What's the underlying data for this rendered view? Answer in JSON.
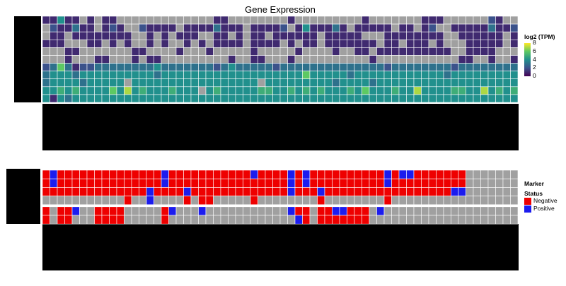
{
  "chart_data": [
    {
      "type": "heatmap",
      "title": "Gene Expression",
      "n_columns": 64,
      "n_rows": 11,
      "colorbar": {
        "title": "log2 (TPM)",
        "ticks": [
          0,
          2,
          4,
          6,
          8
        ],
        "range": [
          0,
          8
        ],
        "colormap": "viridis",
        "missing_color": "#a0a0a0"
      },
      "note": "matrix values are log2(TPM); null = missing (grey)",
      "matrix": [
        [
          1,
          1,
          4,
          1,
          1,
          null,
          1,
          null,
          1,
          1,
          null,
          null,
          null,
          null,
          null,
          null,
          null,
          null,
          null,
          null,
          null,
          null,
          null,
          1,
          1,
          null,
          null,
          null,
          null,
          null,
          null,
          null,
          null,
          1,
          null,
          null,
          null,
          null,
          null,
          null,
          null,
          null,
          null,
          1,
          null,
          null,
          null,
          null,
          null,
          null,
          null,
          1,
          1,
          1,
          null,
          null,
          null,
          null,
          null,
          null,
          2,
          1,
          null,
          null
        ],
        [
          null,
          2,
          1,
          1,
          3,
          1,
          1,
          null,
          1,
          2,
          1,
          null,
          null,
          2,
          1,
          1,
          1,
          1,
          null,
          1,
          1,
          1,
          1,
          3,
          1,
          1,
          1,
          null,
          1,
          1,
          1,
          1,
          2,
          null,
          1,
          4,
          1,
          1,
          1,
          3,
          1,
          null,
          1,
          1,
          1,
          1,
          1,
          null,
          1,
          1,
          null,
          1,
          2,
          null,
          null,
          1,
          1,
          1,
          1,
          1,
          3,
          1,
          1,
          2
        ],
        [
          null,
          1,
          1,
          null,
          1,
          1,
          1,
          1,
          1,
          1,
          1,
          1,
          null,
          null,
          1,
          null,
          1,
          null,
          1,
          1,
          1,
          null,
          null,
          1,
          1,
          null,
          1,
          null,
          1,
          1,
          null,
          1,
          1,
          1,
          1,
          1,
          1,
          null,
          1,
          1,
          1,
          1,
          1,
          null,
          null,
          null,
          1,
          1,
          1,
          1,
          1,
          1,
          1,
          1,
          null,
          null,
          1,
          1,
          1,
          1,
          1,
          1,
          null,
          1
        ],
        [
          1,
          1,
          1,
          null,
          null,
          null,
          1,
          1,
          null,
          1,
          null,
          1,
          null,
          null,
          1,
          null,
          1,
          null,
          null,
          1,
          null,
          1,
          null,
          1,
          1,
          1,
          1,
          null,
          1,
          1,
          1,
          1,
          null,
          1,
          null,
          1,
          1,
          null,
          1,
          1,
          1,
          1,
          1,
          1,
          1,
          null,
          1,
          1,
          null,
          1,
          1,
          1,
          null,
          1,
          null,
          null,
          null,
          1,
          1,
          1,
          1,
          1,
          null,
          1
        ],
        [
          null,
          null,
          null,
          1,
          1,
          null,
          null,
          null,
          null,
          null,
          null,
          null,
          1,
          1,
          null,
          null,
          null,
          null,
          1,
          null,
          null,
          null,
          1,
          null,
          null,
          null,
          null,
          null,
          1,
          null,
          null,
          null,
          null,
          null,
          1,
          null,
          null,
          null,
          null,
          1,
          null,
          null,
          1,
          1,
          null,
          1,
          1,
          1,
          1,
          1,
          1,
          1,
          1,
          1,
          1,
          null,
          null,
          1,
          1,
          1,
          1,
          null,
          null,
          null
        ],
        [
          null,
          null,
          null,
          1,
          null,
          null,
          null,
          1,
          1,
          null,
          null,
          null,
          1,
          null,
          1,
          1,
          null,
          null,
          null,
          null,
          null,
          null,
          null,
          null,
          null,
          1,
          null,
          null,
          1,
          1,
          null,
          null,
          null,
          1,
          null,
          null,
          null,
          null,
          null,
          null,
          null,
          null,
          null,
          null,
          1,
          null,
          null,
          null,
          null,
          null,
          null,
          null,
          null,
          null,
          null,
          null,
          1,
          1,
          null,
          null,
          1,
          null,
          null,
          1
        ],
        [
          2,
          3,
          6,
          3,
          1,
          2,
          2,
          3,
          3,
          3,
          3,
          3,
          3,
          3,
          3,
          4,
          3,
          3,
          3,
          3,
          3,
          3,
          3,
          2,
          3,
          4,
          3,
          3,
          3,
          3,
          3,
          2,
          3,
          3,
          3,
          3,
          3,
          3,
          3,
          3,
          3,
          3,
          3,
          3,
          3,
          3,
          2,
          3,
          3,
          3,
          3,
          3,
          3,
          3,
          3,
          2,
          3,
          3,
          3,
          3,
          3,
          3,
          3,
          3
        ],
        [
          3,
          4,
          4,
          4,
          3,
          4,
          4,
          4,
          4,
          4,
          4,
          4,
          4,
          4,
          4,
          3,
          4,
          4,
          4,
          4,
          4,
          4,
          4,
          4,
          4,
          4,
          4,
          4,
          4,
          4,
          4,
          4,
          4,
          4,
          4,
          6,
          4,
          4,
          4,
          4,
          4,
          3,
          4,
          4,
          4,
          4,
          4,
          4,
          4,
          4,
          4,
          4,
          4,
          4,
          3,
          4,
          4,
          4,
          4,
          4,
          4,
          4,
          4,
          4
        ],
        [
          3,
          4,
          4,
          4,
          4,
          3,
          4,
          4,
          4,
          4,
          4,
          null,
          4,
          4,
          4,
          4,
          4,
          4,
          4,
          4,
          4,
          4,
          4,
          4,
          4,
          4,
          4,
          4,
          4,
          null,
          4,
          4,
          4,
          4,
          4,
          4,
          4,
          4,
          4,
          3,
          4,
          4,
          4,
          4,
          3,
          4,
          4,
          4,
          4,
          4,
          4,
          4,
          4,
          4,
          4,
          4,
          4,
          4,
          4,
          4,
          4,
          4,
          4,
          4
        ],
        [
          4,
          4,
          5,
          4,
          5,
          4,
          4,
          4,
          4,
          6,
          4,
          7,
          4,
          5,
          4,
          4,
          4,
          5,
          4,
          4,
          4,
          null,
          4,
          5,
          4,
          4,
          4,
          4,
          4,
          5,
          5,
          4,
          4,
          5,
          4,
          5,
          4,
          5,
          4,
          4,
          4,
          5,
          4,
          6,
          4,
          4,
          4,
          5,
          4,
          4,
          7,
          4,
          4,
          4,
          4,
          5,
          5,
          4,
          4,
          7,
          4,
          5,
          4,
          5
        ],
        [
          4,
          1,
          4,
          3,
          4,
          4,
          4,
          4,
          4,
          4,
          4,
          4,
          4,
          4,
          4,
          4,
          4,
          4,
          4,
          4,
          4,
          4,
          4,
          4,
          4,
          4,
          4,
          4,
          4,
          4,
          4,
          4,
          4,
          4,
          4,
          4,
          4,
          4,
          4,
          4,
          4,
          4,
          4,
          4,
          4,
          4,
          4,
          4,
          4,
          4,
          4,
          4,
          4,
          4,
          4,
          4,
          4,
          4,
          4,
          4,
          4,
          4,
          4,
          4
        ]
      ]
    },
    {
      "type": "heatmap",
      "title": "",
      "n_columns": 64,
      "n_rows": 6,
      "legend": {
        "title": "Marker Status",
        "entries": [
          {
            "label": "Negative",
            "color": "#ee0000"
          },
          {
            "label": "Positive",
            "color": "#1c1cee"
          }
        ],
        "missing_color": "#a0a0a0"
      },
      "note": "N = Negative, P = Positive, null = missing (grey)",
      "matrix": [
        [
          "N",
          "P",
          "N",
          "N",
          "N",
          "N",
          "N",
          "N",
          "N",
          "N",
          "N",
          "N",
          "N",
          "N",
          "N",
          "N",
          "P",
          "N",
          "N",
          "N",
          "N",
          "N",
          "N",
          "N",
          "N",
          "N",
          "N",
          "N",
          "P",
          "N",
          "N",
          "N",
          "N",
          "P",
          "N",
          "P",
          "N",
          "N",
          "N",
          "N",
          "N",
          "N",
          "N",
          "N",
          "N",
          "N",
          "P",
          "N",
          "P",
          "P",
          "N",
          "N",
          "N",
          "N",
          "N",
          "N",
          "N",
          null,
          null,
          null,
          null,
          null,
          null,
          null
        ],
        [
          "N",
          "P",
          "N",
          "N",
          "N",
          "N",
          "N",
          "N",
          "N",
          "N",
          "N",
          "N",
          "N",
          "N",
          "N",
          "N",
          "P",
          "N",
          "N",
          "N",
          "N",
          "N",
          "N",
          "N",
          "N",
          "N",
          "N",
          "N",
          "N",
          "N",
          "N",
          "N",
          "N",
          "P",
          "N",
          "P",
          "N",
          "N",
          "N",
          "N",
          "N",
          "N",
          "N",
          "N",
          "N",
          "N",
          "P",
          "N",
          "N",
          "N",
          "N",
          "N",
          "N",
          "N",
          "N",
          "N",
          "N",
          null,
          null,
          null,
          null,
          null,
          null,
          null
        ],
        [
          "N",
          "N",
          "N",
          "N",
          "N",
          "N",
          "N",
          "N",
          "N",
          "N",
          "N",
          "N",
          "N",
          "N",
          "P",
          "N",
          "N",
          "N",
          "N",
          "P",
          "N",
          "N",
          "N",
          "N",
          "N",
          "N",
          "N",
          "N",
          "N",
          "N",
          "N",
          "N",
          "N",
          "P",
          "N",
          "N",
          "N",
          "P",
          "N",
          "N",
          "N",
          "N",
          "N",
          "N",
          "N",
          "N",
          "N",
          "N",
          "N",
          "N",
          "N",
          "N",
          "N",
          "N",
          "N",
          "P",
          "P",
          null,
          null,
          null,
          null,
          null,
          null,
          null
        ],
        [
          null,
          null,
          null,
          null,
          null,
          null,
          null,
          null,
          null,
          null,
          null,
          "N",
          null,
          null,
          "P",
          null,
          null,
          null,
          null,
          "N",
          null,
          "N",
          "N",
          null,
          null,
          null,
          null,
          null,
          "N",
          null,
          null,
          null,
          null,
          null,
          null,
          null,
          null,
          "N",
          null,
          null,
          null,
          null,
          null,
          null,
          null,
          null,
          "N",
          null,
          null,
          null,
          null,
          null,
          null,
          null,
          null,
          null,
          null,
          null,
          null,
          null,
          null,
          null,
          null,
          null
        ],
        [
          "N",
          null,
          "N",
          "N",
          "P",
          null,
          null,
          "N",
          "N",
          "N",
          "N",
          null,
          null,
          null,
          null,
          null,
          "N",
          "P",
          null,
          null,
          null,
          "P",
          null,
          null,
          null,
          null,
          null,
          null,
          null,
          null,
          null,
          null,
          null,
          "P",
          "N",
          "N",
          null,
          "N",
          "N",
          "P",
          "P",
          "N",
          "N",
          "N",
          null,
          "P",
          null,
          null,
          null,
          null,
          null,
          null,
          null,
          null,
          null,
          null,
          null,
          null,
          null,
          null,
          null,
          null,
          null,
          null
        ],
        [
          "N",
          null,
          "N",
          "N",
          null,
          null,
          null,
          "N",
          "N",
          "N",
          "N",
          null,
          null,
          null,
          null,
          null,
          "N",
          null,
          null,
          null,
          null,
          null,
          null,
          null,
          null,
          null,
          null,
          null,
          null,
          null,
          null,
          null,
          null,
          null,
          "P",
          "N",
          null,
          "N",
          "N",
          "N",
          "N",
          "N",
          "N",
          "N",
          null,
          null,
          null,
          null,
          null,
          null,
          null,
          null,
          null,
          null,
          null,
          null,
          null,
          null,
          null,
          null,
          null,
          null,
          null,
          null
        ]
      ]
    }
  ]
}
